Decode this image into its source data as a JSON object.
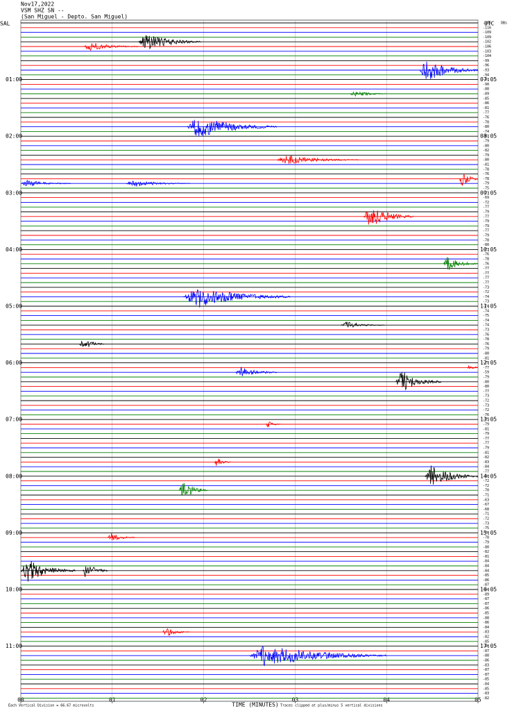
{
  "chart_data": {
    "type": "helicorder",
    "title": "Nov17,2022",
    "station": "VSM SHZ SN --",
    "location": "(San Miguel - Depto. San Miguel)",
    "left_zone": "SAL",
    "right_zone": "UTC",
    "level_header": "DBs",
    "xlabel": "TIME (MINUTES)",
    "scale_note": "Each Vertical Division =  66.67 microvolts",
    "clip_note": "Traces clipped at plus/minus 5 vertical divisions",
    "xlim": [
      0,
      5
    ],
    "xticks": [
      {
        "value": 0,
        "label": "00"
      },
      {
        "value": 1,
        "label": "01"
      },
      {
        "value": 2,
        "label": "02"
      },
      {
        "value": 3,
        "label": "03"
      },
      {
        "value": 4,
        "label": "04"
      },
      {
        "value": 5,
        "label": "05"
      }
    ],
    "grid": true,
    "row_colors": [
      "#000000",
      "#ff0000",
      "#0000ff",
      "#007f00"
    ],
    "left_labels": [
      "01:00",
      "02:00",
      "03:00",
      "04:00",
      "05:00",
      "06:00",
      "07:00",
      "08:00",
      "09:00",
      "10:00",
      "11:00"
    ],
    "right_labels": [
      "07:05",
      "08:05",
      "09:05",
      "10:05",
      "11:05",
      "12:05",
      "13:05",
      "14:05",
      "15:05",
      "16:05",
      "17:05"
    ],
    "row_levels": [
      -105,
      -116,
      -109,
      -109,
      -102,
      -106,
      -103,
      -104,
      -99,
      -96,
      -93,
      -94,
      -91,
      -90,
      -88,
      -89,
      -85,
      -86,
      -81,
      -77,
      -76,
      -78,
      -80,
      -74,
      -81,
      -79,
      -80,
      -82,
      -79,
      -80,
      -81,
      -78,
      -76,
      -78,
      -79,
      -75,
      -73,
      -69,
      -72,
      -77,
      -79,
      -77,
      -79,
      -79,
      -77,
      -79,
      -78,
      -80,
      -73,
      -76,
      -78,
      -76,
      -77,
      -77,
      -77,
      -77,
      -73,
      -72,
      -74,
      -73,
      -74,
      -74,
      -75,
      -74,
      -74,
      -73,
      -76,
      -78,
      -76,
      -79,
      -80,
      -81,
      -75,
      -77,
      -59,
      -79,
      -80,
      -80,
      -77,
      -73,
      -72,
      -73,
      -72,
      -76,
      -75,
      -79,
      -81,
      -79,
      -77,
      -77,
      -79,
      -81,
      -82,
      -83,
      -84,
      -77,
      -80,
      -72,
      -72,
      -70,
      -71,
      -63,
      -67,
      -68,
      -71,
      -72,
      -73,
      -75,
      -76,
      -78,
      -79,
      -80,
      -82,
      -81,
      -84,
      -84,
      -84,
      -85,
      -86,
      -87,
      -84,
      -89,
      -87,
      -87,
      -86,
      -85,
      -88,
      -86,
      -84,
      -83,
      -82,
      -85,
      -86,
      -87,
      -88,
      -86,
      -83,
      -87,
      -87,
      -85,
      -84,
      -85,
      -83,
      -82
    ],
    "events": [
      {
        "row": 4,
        "start": 1.29,
        "end": 1.97,
        "amp": 4
      },
      {
        "row": 5,
        "start": 0.68,
        "end": 1.29,
        "amp": 2
      },
      {
        "row": 10,
        "start": 4.36,
        "end": 5,
        "amp": 5
      },
      {
        "row": 15,
        "start": 3.6,
        "end": 4.0,
        "amp": 1.5
      },
      {
        "row": 22,
        "start": 1.82,
        "end": 2.8,
        "amp": 5
      },
      {
        "row": 29,
        "start": 2.8,
        "end": 3.7,
        "amp": 2
      },
      {
        "row": 33,
        "start": 4.8,
        "end": 5,
        "amp": 5
      },
      {
        "row": 34,
        "start": 0,
        "end": 0.55,
        "amp": 1.5
      },
      {
        "row": 34,
        "start": 1.15,
        "end": 1.85,
        "amp": 1.5
      },
      {
        "row": 41,
        "start": 3.75,
        "end": 4.3,
        "amp": 5
      },
      {
        "row": 51,
        "start": 4.62,
        "end": 5,
        "amp": 3
      },
      {
        "row": 58,
        "start": 1.78,
        "end": 2.95,
        "amp": 5
      },
      {
        "row": 64,
        "start": 3.5,
        "end": 3.98,
        "amp": 1.5
      },
      {
        "row": 68,
        "start": 0.64,
        "end": 0.91,
        "amp": 3
      },
      {
        "row": 73,
        "start": 4.88,
        "end": 5,
        "amp": 2.5
      },
      {
        "row": 74,
        "start": 2.35,
        "end": 2.8,
        "amp": 2.5
      },
      {
        "row": 76,
        "start": 4.1,
        "end": 4.6,
        "amp": 5
      },
      {
        "row": 85,
        "start": 2.68,
        "end": 2.85,
        "amp": 1.5
      },
      {
        "row": 93,
        "start": 2.12,
        "end": 2.3,
        "amp": 2
      },
      {
        "row": 96,
        "start": 4.42,
        "end": 5,
        "amp": 5
      },
      {
        "row": 99,
        "start": 1.73,
        "end": 2.05,
        "amp": 4
      },
      {
        "row": 109,
        "start": 0.95,
        "end": 1.25,
        "amp": 2
      },
      {
        "row": 116,
        "start": 0,
        "end": 0.6,
        "amp": 5
      },
      {
        "row": 116,
        "start": 0.68,
        "end": 0.95,
        "amp": 4
      },
      {
        "row": 129,
        "start": 1.55,
        "end": 1.85,
        "amp": 2
      },
      {
        "row": 134,
        "start": 2.5,
        "end": 4.0,
        "amp": 5
      }
    ]
  }
}
